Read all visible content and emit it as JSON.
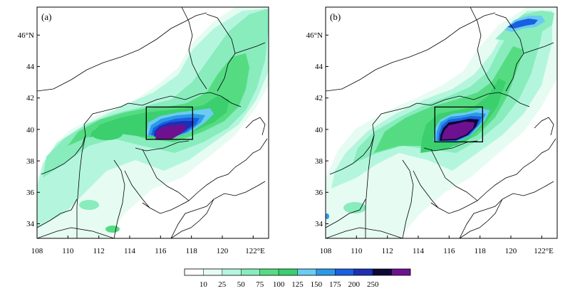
{
  "panels": [
    {
      "label": "(a)",
      "x_ticks": [
        "108",
        "110",
        "112",
        "114",
        "116",
        "118",
        "120",
        "122°E"
      ],
      "y_ticks": [
        "46°N",
        "44",
        "42",
        "40",
        "38",
        "36",
        "34"
      ]
    },
    {
      "label": "(b)",
      "x_ticks": [
        "108",
        "110",
        "112",
        "114",
        "116",
        "118",
        "120",
        "122°E"
      ],
      "y_ticks": [
        "46°N",
        "44",
        "42",
        "40",
        "38",
        "36",
        "34"
      ]
    }
  ],
  "colorbar": {
    "labels": [
      "10",
      "25",
      "50",
      "75",
      "100",
      "125",
      "150",
      "175",
      "200",
      "250"
    ],
    "colors": [
      "#ffffff",
      "#e6fcf3",
      "#b4f6dd",
      "#88ecbd",
      "#55dc83",
      "#3ccf6e",
      "#6ccbf0",
      "#2a9ae8",
      "#1a5fe0",
      "#1c2fb5",
      "#0c0838",
      "#6e1190"
    ]
  },
  "map": {
    "lon_range": [
      108,
      123
    ],
    "lat_range": [
      33,
      47.7
    ],
    "box": {
      "lon": [
        115,
        118
      ],
      "lat": [
        39.2,
        41.3
      ]
    }
  }
}
